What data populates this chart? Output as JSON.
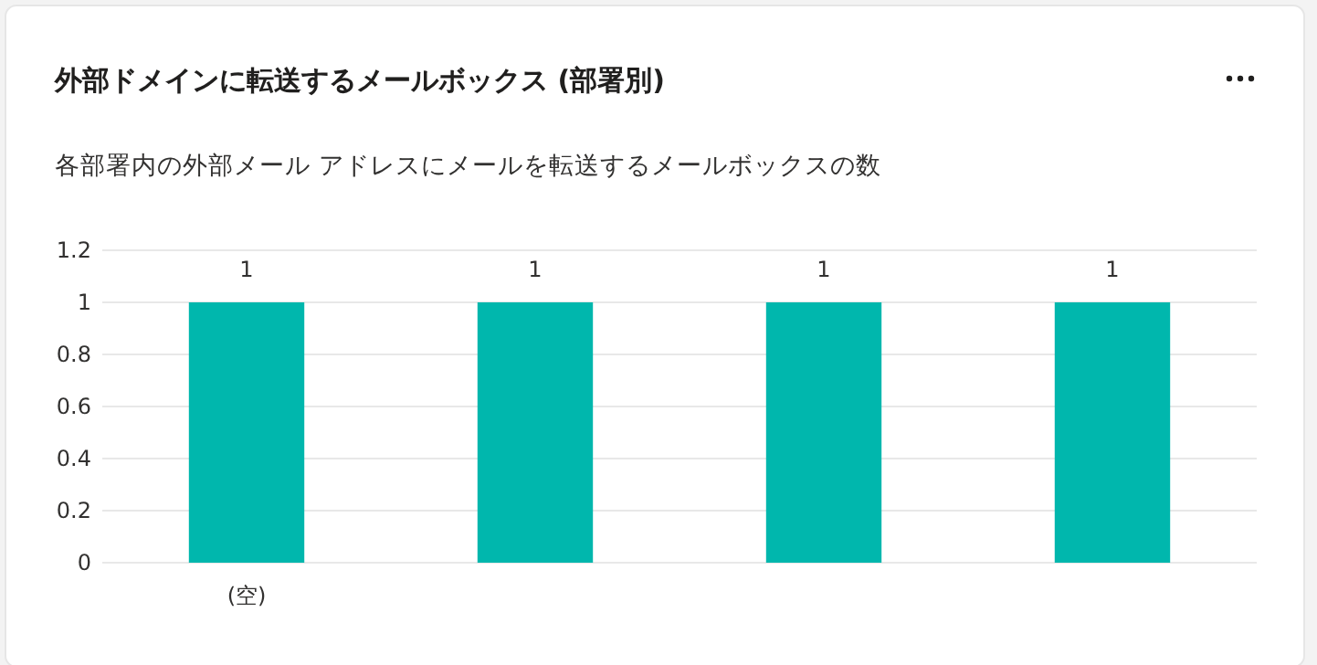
{
  "chart_data": {
    "type": "bar",
    "title": "外部ドメインに転送するメールボックス (部署別)",
    "subtitle": "各部署内の外部メール アドレスにメールを転送するメールボックスの数",
    "categories": [
      "(空)",
      null,
      null,
      null
    ],
    "values": [
      1,
      1,
      1,
      1
    ],
    "color": "#00b7ad",
    "ylim": [
      0,
      1.2
    ],
    "yticks": [
      0,
      0.2,
      0.4,
      0.6,
      0.8,
      1,
      1.2
    ],
    "grid": "y",
    "data_labels": true
  }
}
